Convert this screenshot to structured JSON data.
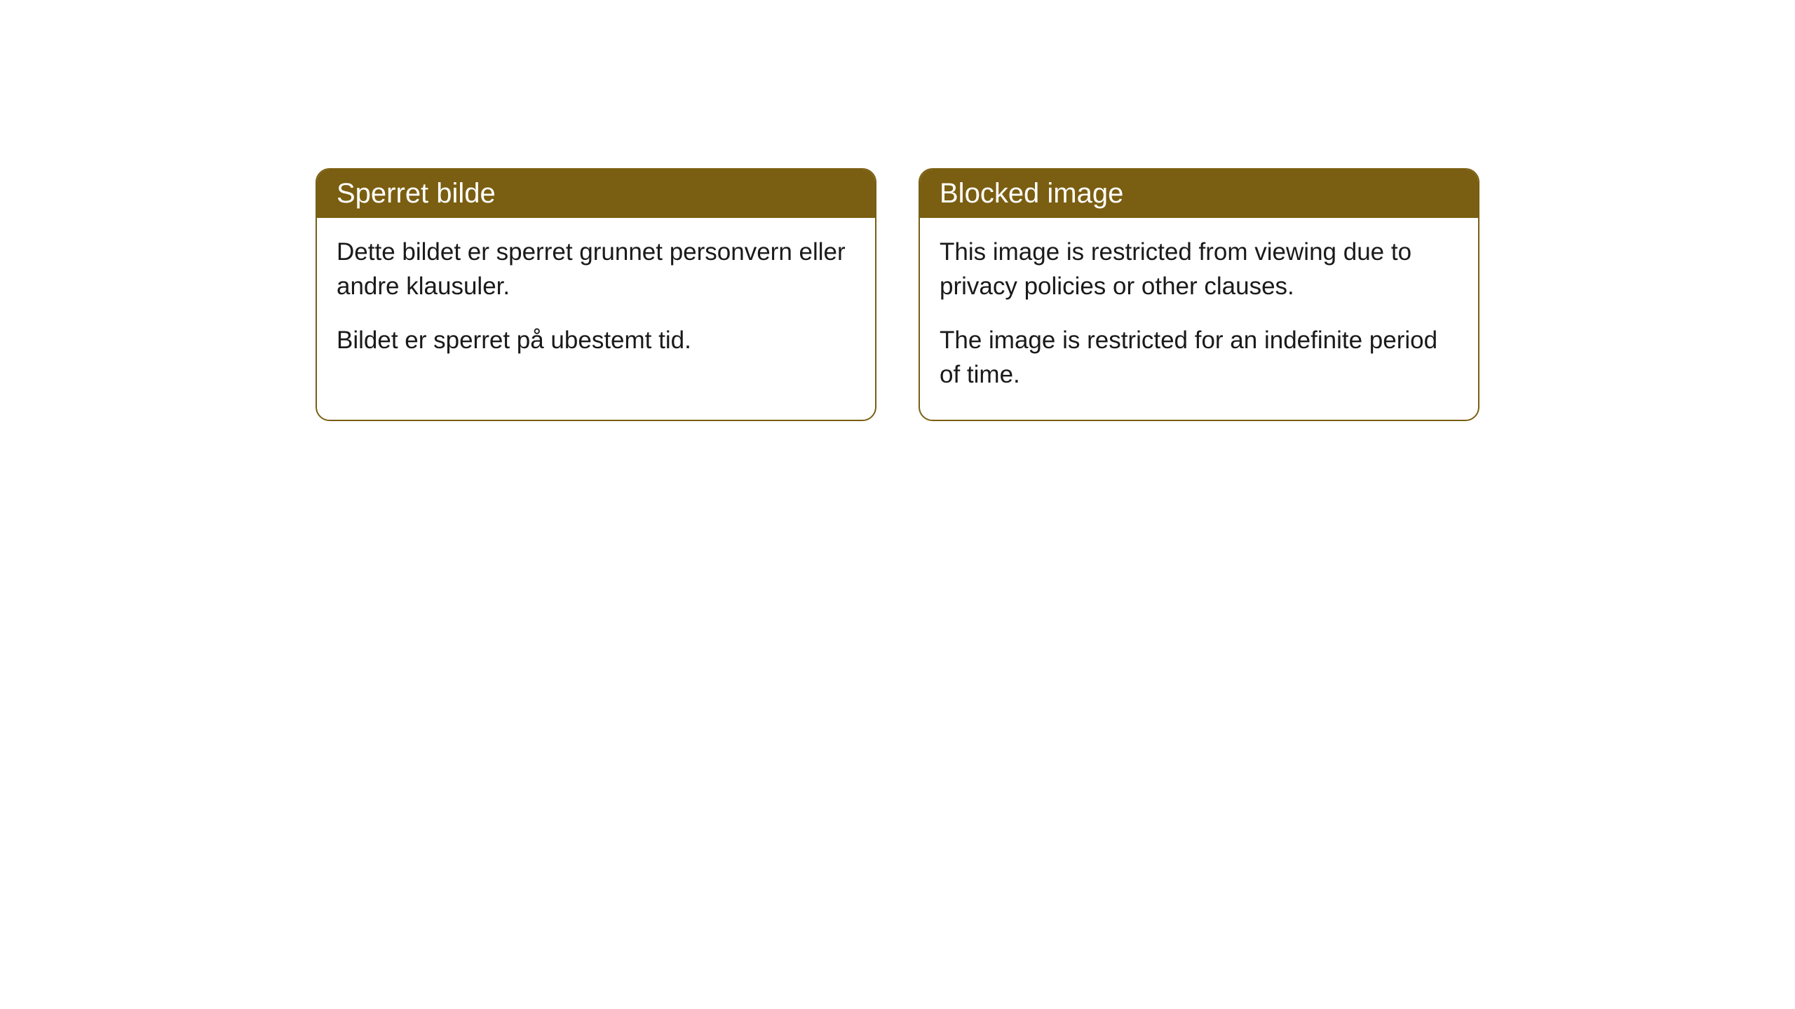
{
  "cards": [
    {
      "title": "Sperret bilde",
      "paragraph1": "Dette bildet er sperret grunnet personvern eller andre klausuler.",
      "paragraph2": "Bildet er sperret på ubestemt tid."
    },
    {
      "title": "Blocked image",
      "paragraph1": "This image is restricted from viewing due to privacy policies or other clauses.",
      "paragraph2": "The image is restricted for an indefinite period of time."
    }
  ],
  "styling": {
    "header_background_color": "#7a5e11",
    "header_text_color": "#ffffff",
    "border_color": "#7a5e11",
    "border_radius": 20,
    "body_background_color": "#ffffff",
    "body_text_color": "#1a1a1a",
    "title_fontsize": 40,
    "body_fontsize": 35
  }
}
